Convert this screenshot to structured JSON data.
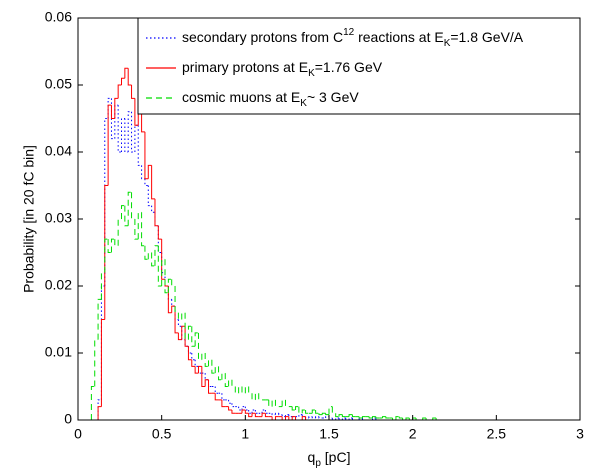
{
  "chart_data": {
    "type": "histogram",
    "xlabel": [
      {
        "text": "q"
      },
      {
        "text": "p",
        "shift": "sub"
      },
      {
        "text": " [pC]"
      }
    ],
    "ylabel": "Probability [in 20 fC bin]",
    "xlim": [
      0,
      3
    ],
    "ylim": [
      0,
      0.06
    ],
    "xticks": [
      0,
      0.5,
      1,
      1.5,
      2,
      2.5,
      3
    ],
    "yticks": [
      0,
      0.01,
      0.02,
      0.03,
      0.04,
      0.05,
      0.06
    ],
    "legend": "upper right",
    "bins": [
      0,
      0.02,
      0.04,
      0.06,
      0.08,
      0.1,
      0.12,
      0.14,
      0.16,
      0.18,
      0.2,
      0.22,
      0.24,
      0.26,
      0.28,
      0.3,
      0.32,
      0.34,
      0.36,
      0.38,
      0.4,
      0.42,
      0.44,
      0.46,
      0.48,
      0.5,
      0.52,
      0.54,
      0.56,
      0.58,
      0.6,
      0.62,
      0.64,
      0.66,
      0.68,
      0.7,
      0.72,
      0.74,
      0.76,
      0.78,
      0.8,
      0.82,
      0.84,
      0.86,
      0.88,
      0.9,
      0.92,
      0.94,
      0.96,
      0.98,
      1,
      1.02,
      1.04,
      1.06,
      1.08,
      1.1,
      1.12,
      1.14,
      1.16,
      1.18,
      1.2,
      1.22,
      1.24,
      1.26,
      1.28,
      1.3,
      1.32,
      1.34,
      1.36,
      1.38,
      1.4,
      1.42,
      1.44,
      1.46,
      1.48,
      1.5,
      1.52,
      1.54,
      1.56,
      1.58,
      1.6,
      1.62,
      1.64,
      1.66,
      1.68,
      1.7,
      1.72,
      1.74,
      1.76,
      1.78,
      1.8,
      1.82,
      1.84,
      1.86,
      1.88,
      1.9,
      1.92,
      1.94,
      1.96,
      1.98,
      2,
      2.02,
      2.04,
      2.06,
      2.08,
      2.1,
      2.12,
      2.14,
      2.16,
      2.18,
      2.2,
      2.22,
      2.24,
      2.26,
      2.28,
      2.3,
      2.32,
      2.34,
      2.36,
      2.38,
      2.4,
      2.42,
      2.44,
      2.46,
      2.48,
      2.5,
      2.52,
      2.54,
      2.56,
      2.58,
      2.6,
      2.62,
      2.64,
      2.66,
      2.68,
      2.7,
      2.72,
      2.74,
      2.76,
      2.78,
      2.8,
      2.82,
      2.84,
      2.86,
      2.88,
      2.9,
      2.92,
      2.94,
      2.96,
      2.98,
      3
    ],
    "series": [
      {
        "name": [
          {
            "text": "secondary protons from C"
          },
          {
            "text": "12",
            "shift": "super"
          },
          {
            "text": " reactions at E"
          },
          {
            "text": "K",
            "shift": "sub"
          },
          {
            "text": "=1.8 GeV/A"
          }
        ],
        "color": "#0000ff",
        "dash": "1.5,2.5",
        "values": [
          0,
          0,
          0,
          0,
          0,
          0,
          0.003,
          0.02,
          0.045,
          0.048,
          0.042,
          0.047,
          0.04,
          0.045,
          0.04,
          0.046,
          0.04,
          0.044,
          0.038,
          0.036,
          0.035,
          0.032,
          0.031,
          0.029,
          0.025,
          0.022,
          0.02,
          0.018,
          0.017,
          0.015,
          0.014,
          0.012,
          0.011,
          0.01,
          0.009,
          0.008,
          0.007,
          0.007,
          0.006,
          0.005,
          0.005,
          0.004,
          0.004,
          0.003,
          0.003,
          0.0025,
          0.002,
          0.002,
          0.0015,
          0.002,
          0.0015,
          0.001,
          0.0015,
          0.001,
          0.001,
          0.0015,
          0.001,
          0.001,
          0.0008,
          0.001,
          0.0008,
          0.0005,
          0.0008,
          0.0005,
          0.0005,
          0.0005,
          0.0008,
          0.0005,
          0.0003,
          0.0005,
          0.0003,
          0.0005,
          0.0003,
          0.0003,
          0.0005,
          0.0003,
          0,
          0.0003,
          0,
          0.0003,
          0,
          0.0003,
          0,
          0,
          0.0003,
          0,
          0,
          0,
          0.0003,
          0,
          0,
          0,
          0,
          0,
          0,
          0,
          0,
          0,
          0,
          0,
          0,
          0,
          0,
          0,
          0,
          0,
          0,
          0,
          0,
          0,
          0,
          0,
          0,
          0,
          0,
          0,
          0,
          0,
          0,
          0,
          0,
          0,
          0,
          0,
          0,
          0,
          0,
          0,
          0,
          0,
          0,
          0,
          0,
          0,
          0,
          0,
          0,
          0,
          0,
          0,
          0,
          0,
          0,
          0,
          0,
          0,
          0,
          0,
          0,
          0
        ]
      },
      {
        "name": [
          {
            "text": "primary protons at E"
          },
          {
            "text": "K",
            "shift": "sub"
          },
          {
            "text": "=1.76 GeV"
          }
        ],
        "color": "#ff0000",
        "dash": "none",
        "values": [
          0,
          0,
          0,
          0,
          0,
          0,
          0.002,
          0.015,
          0.035,
          0.047,
          0.045,
          0.048,
          0.05,
          0.051,
          0.0525,
          0.05,
          0.048,
          0.044,
          0.048,
          0.043,
          0.036,
          0.038,
          0.033,
          0.029,
          0.027,
          0.021,
          0.02,
          0.016,
          0.017,
          0.013,
          0.012,
          0.014,
          0.011,
          0.009,
          0.008,
          0.007,
          0.008,
          0.005,
          0.006,
          0.004,
          0.004,
          0.003,
          0.003,
          0.002,
          0.002,
          0.0015,
          0.001,
          0.001,
          0.001,
          0.0015,
          0.001,
          0.0005,
          0.001,
          0.0005,
          0.0005,
          0.001,
          0.0005,
          0.0005,
          0,
          0.0005,
          0.0005,
          0,
          0.0005,
          0,
          0.0005,
          0,
          0,
          0.0005,
          0,
          0,
          0,
          0,
          0,
          0,
          0,
          0,
          0,
          0,
          0,
          0,
          0,
          0,
          0,
          0,
          0,
          0,
          0,
          0,
          0,
          0,
          0,
          0,
          0,
          0,
          0,
          0,
          0,
          0,
          0,
          0,
          0,
          0,
          0,
          0,
          0,
          0,
          0,
          0,
          0,
          0,
          0,
          0,
          0,
          0,
          0,
          0,
          0,
          0,
          0,
          0,
          0,
          0,
          0,
          0,
          0,
          0,
          0,
          0,
          0,
          0,
          0,
          0,
          0,
          0,
          0,
          0,
          0,
          0,
          0,
          0,
          0,
          0,
          0,
          0,
          0,
          0,
          0,
          0,
          0,
          0
        ]
      },
      {
        "name": [
          {
            "text": "cosmic muons at E"
          },
          {
            "text": "K",
            "shift": "sub"
          },
          {
            "text": "~ 3 GeV"
          }
        ],
        "color": "#00dd00",
        "dash": "6,4",
        "values": [
          0,
          0,
          0,
          0,
          0.005,
          0.012,
          0.018,
          0.022,
          0.027,
          0.025,
          0.027,
          0.026,
          0.03,
          0.032,
          0.029,
          0.034,
          0.03,
          0.027,
          0.031,
          0.026,
          0.024,
          0.025,
          0.023,
          0.026,
          0.02,
          0.024,
          0.019,
          0.021,
          0.02,
          0.016,
          0.015,
          0.016,
          0.012,
          0.014,
          0.011,
          0.013,
          0.009,
          0.01,
          0.008,
          0.009,
          0.007,
          0.008,
          0.006,
          0.007,
          0.005,
          0.006,
          0.005,
          0.004,
          0.005,
          0.004,
          0.005,
          0.004,
          0.003,
          0.004,
          0.003,
          0.003,
          0.003,
          0.002,
          0.003,
          0.002,
          0.002,
          0.003,
          0.002,
          0.002,
          0.0015,
          0.002,
          0.001,
          0.0015,
          0.001,
          0.001,
          0.0015,
          0.001,
          0.0008,
          0.001,
          0.0008,
          0.002,
          0.001,
          0.0005,
          0.0008,
          0.0005,
          0.0005,
          0.0008,
          0.0005,
          0.0005,
          0.0003,
          0.0005,
          0.0005,
          0.0003,
          0.0005,
          0.0003,
          0.0003,
          0.0005,
          0.0003,
          0.0003,
          0,
          0.0005,
          0.0003,
          0,
          0.0003,
          0,
          0.0003,
          0,
          0,
          0.0003,
          0,
          0,
          0.0003,
          0,
          0,
          0,
          0,
          0,
          0,
          0,
          0,
          0,
          0,
          0,
          0,
          0,
          0,
          0,
          0,
          0,
          0,
          0,
          0,
          0,
          0,
          0,
          0,
          0,
          0,
          0,
          0,
          0,
          0,
          0,
          0,
          0,
          0,
          0,
          0,
          0,
          0,
          0,
          0,
          0,
          0,
          0
        ]
      }
    ]
  }
}
